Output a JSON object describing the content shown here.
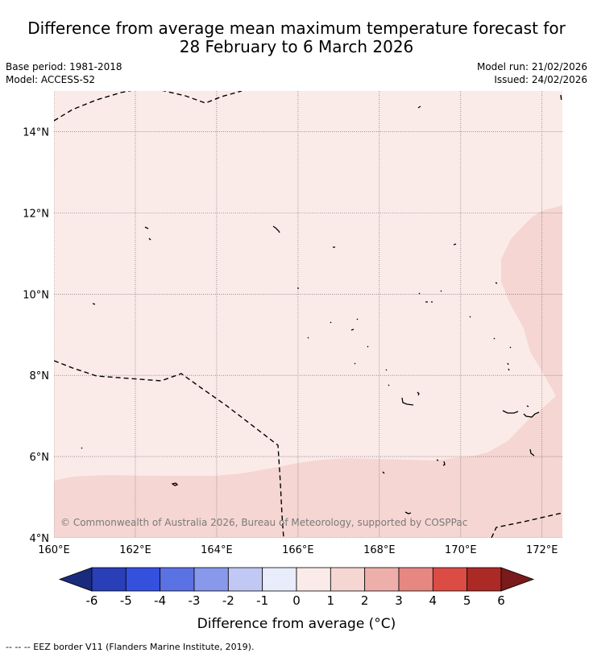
{
  "title": {
    "line1": "Difference from average mean maximum temperature forecast for",
    "line2": "28 February to 6 March 2026"
  },
  "info": {
    "base_period": "Base period: 1981-2018",
    "model": "Model: ACCESS-S2",
    "model_run": "Model run: 21/02/2026",
    "issued": "Issued: 24/02/2026"
  },
  "map": {
    "lon_range": [
      160,
      172.5
    ],
    "lat_range": [
      4,
      15
    ],
    "lon_ticks": [
      "160°E",
      "162°E",
      "164°E",
      "166°E",
      "168°E",
      "170°E",
      "172°E"
    ],
    "lat_ticks": [
      "4°N",
      "6°N",
      "8°N",
      "10°N",
      "12°N",
      "14°N"
    ],
    "grid": true,
    "copyright": "© Commonwealth of Australia 2026, Bureau of Meteorology, supported by COSPPac",
    "fill_colors": {
      "0_to_1": "#fbebe8",
      "1_to_2": "#f5d6d3"
    }
  },
  "colorbar": {
    "ticks": [
      "-6",
      "-5",
      "-4",
      "-3",
      "-2",
      "-1",
      "0",
      "1",
      "2",
      "3",
      "4",
      "5",
      "6"
    ],
    "colors": [
      "#1a2a7d",
      "#283fb8",
      "#3451de",
      "#5b72e4",
      "#8898ea",
      "#c0c8f3",
      "#e8ecfb",
      "#fbebe8",
      "#f5d6d3",
      "#eeafab",
      "#e78782",
      "#db4c45",
      "#ac2a25",
      "#7a1a1a"
    ],
    "label": "Difference from average (°C)"
  },
  "footnote": "-- -- -- EEZ border V11 (Flanders Marine Institute, 2019)."
}
